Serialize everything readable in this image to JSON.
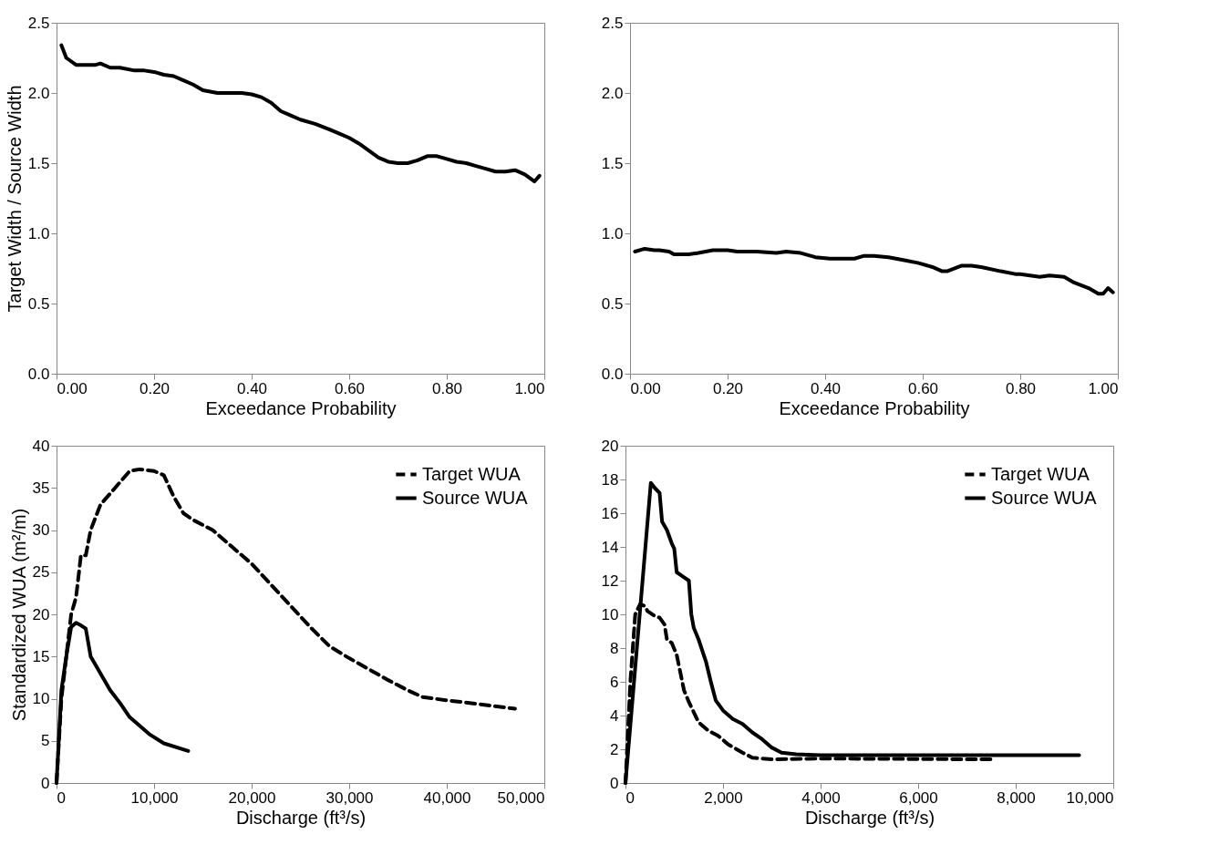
{
  "chart_data": [
    {
      "type": "line",
      "xlabel": "Exceedance Probability",
      "ylabel": "Target Width / Source Width",
      "line_style": "solid",
      "grid": false,
      "legend": false,
      "xlim": [
        0,
        1
      ],
      "xticks": [
        {
          "value": 0,
          "label": "0.00"
        },
        {
          "value": 0.2,
          "label": "0.20"
        },
        {
          "value": 0.4,
          "label": "0.40"
        },
        {
          "value": 0.6,
          "label": "0.60"
        },
        {
          "value": 0.8,
          "label": "0.80"
        },
        {
          "value": 1,
          "label": "1.00"
        }
      ],
      "ylim": [
        0,
        2.5
      ],
      "yticks": [
        {
          "value": 0,
          "label": "0.0"
        },
        {
          "value": 0.5,
          "label": "0.5"
        },
        {
          "value": 1,
          "label": "1.0"
        },
        {
          "value": 1.5,
          "label": "1.5"
        },
        {
          "value": 2,
          "label": "2.0"
        },
        {
          "value": 2.5,
          "label": "2.5"
        }
      ],
      "series": [
        {
          "color": "#000000",
          "x": [
            0.01,
            0.02,
            0.04,
            0.06,
            0.08,
            0.09,
            0.11,
            0.13,
            0.16,
            0.18,
            0.2,
            0.22,
            0.24,
            0.26,
            0.28,
            0.3,
            0.33,
            0.36,
            0.38,
            0.4,
            0.42,
            0.44,
            0.46,
            0.48,
            0.5,
            0.53,
            0.56,
            0.58,
            0.6,
            0.62,
            0.64,
            0.66,
            0.68,
            0.7,
            0.72,
            0.74,
            0.76,
            0.78,
            0.8,
            0.82,
            0.84,
            0.86,
            0.88,
            0.9,
            0.92,
            0.94,
            0.96,
            0.98,
            0.99
          ],
          "values": [
            2.34,
            2.25,
            2.2,
            2.2,
            2.2,
            2.21,
            2.18,
            2.18,
            2.16,
            2.16,
            2.15,
            2.13,
            2.12,
            2.09,
            2.06,
            2.02,
            2.0,
            2.0,
            2.0,
            1.99,
            1.97,
            1.93,
            1.87,
            1.84,
            1.81,
            1.78,
            1.74,
            1.71,
            1.68,
            1.64,
            1.59,
            1.54,
            1.51,
            1.5,
            1.5,
            1.52,
            1.55,
            1.55,
            1.53,
            1.51,
            1.5,
            1.48,
            1.46,
            1.44,
            1.44,
            1.45,
            1.42,
            1.37,
            1.41
          ]
        }
      ]
    },
    {
      "type": "line",
      "xlabel": "Exceedance Probability",
      "line_style": "solid",
      "grid": false,
      "legend": false,
      "xlim": [
        0,
        1
      ],
      "xticks": [
        {
          "value": 0,
          "label": "0.00"
        },
        {
          "value": 0.2,
          "label": "0.20"
        },
        {
          "value": 0.4,
          "label": "0.40"
        },
        {
          "value": 0.6,
          "label": "0.60"
        },
        {
          "value": 0.8,
          "label": "0.80"
        },
        {
          "value": 1,
          "label": "1.00"
        }
      ],
      "ylim": [
        0,
        2.5
      ],
      "yticks": [
        {
          "value": 0,
          "label": "0.0"
        },
        {
          "value": 0.5,
          "label": "0.5"
        },
        {
          "value": 1,
          "label": "1.0"
        },
        {
          "value": 1.5,
          "label": "1.5"
        },
        {
          "value": 2,
          "label": "2.0"
        },
        {
          "value": 2.5,
          "label": "2.5"
        }
      ],
      "series": [
        {
          "color": "#000000",
          "x": [
            0.01,
            0.03,
            0.05,
            0.06,
            0.08,
            0.09,
            0.12,
            0.14,
            0.17,
            0.2,
            0.22,
            0.26,
            0.3,
            0.32,
            0.35,
            0.38,
            0.41,
            0.44,
            0.46,
            0.48,
            0.5,
            0.53,
            0.56,
            0.59,
            0.62,
            0.64,
            0.65,
            0.68,
            0.7,
            0.72,
            0.76,
            0.79,
            0.8,
            0.84,
            0.86,
            0.89,
            0.91,
            0.94,
            0.96,
            0.97,
            0.98,
            0.99
          ],
          "values": [
            0.87,
            0.89,
            0.88,
            0.88,
            0.87,
            0.85,
            0.85,
            0.86,
            0.88,
            0.88,
            0.87,
            0.87,
            0.86,
            0.87,
            0.86,
            0.83,
            0.82,
            0.82,
            0.82,
            0.84,
            0.84,
            0.83,
            0.81,
            0.79,
            0.76,
            0.73,
            0.73,
            0.77,
            0.77,
            0.76,
            0.73,
            0.71,
            0.71,
            0.69,
            0.7,
            0.69,
            0.65,
            0.61,
            0.57,
            0.57,
            0.61,
            0.58
          ]
        }
      ]
    },
    {
      "type": "line",
      "xlabel": "Discharge (ft³/s)",
      "ylabel": "Standardized WUA (m²/m)",
      "grid": false,
      "legend": "top right",
      "xlim": [
        0,
        50000
      ],
      "xticks": [
        0,
        {
          "value": 10000,
          "label": "10,000"
        },
        {
          "value": 20000,
          "label": "20,000"
        },
        {
          "value": 30000,
          "label": "30,000"
        },
        {
          "value": 40000,
          "label": "40,000"
        },
        {
          "value": 50000,
          "label": "50,000"
        }
      ],
      "ylim": [
        0,
        40
      ],
      "yticks": [
        0,
        5,
        10,
        15,
        20,
        25,
        30,
        35,
        40
      ],
      "series": [
        {
          "name": "Target WUA",
          "color": "#000000",
          "line_style": "dashed",
          "x": [
            0,
            500,
            1000,
            1500,
            2000,
            2500,
            3000,
            3500,
            4500,
            6000,
            7500,
            8500,
            10000,
            11000,
            12000,
            13000,
            14000,
            16000,
            18000,
            20000,
            22000,
            24000,
            26000,
            28000,
            30000,
            32000,
            34000,
            36000,
            37500,
            40000,
            43000,
            47000
          ],
          "values": [
            0,
            10,
            15,
            20,
            22,
            27,
            27,
            30,
            33,
            35,
            37,
            37.2,
            37,
            36.5,
            34,
            32,
            31.2,
            30,
            28,
            26,
            23.5,
            21,
            18.5,
            16.2,
            14.8,
            13.5,
            12.2,
            11,
            10.2,
            9.8,
            9.4,
            8.8
          ]
        },
        {
          "name": "Source WUA",
          "color": "#000000",
          "line_style": "solid",
          "x": [
            0,
            500,
            1000,
            1500,
            2000,
            2500,
            3000,
            3500,
            4500,
            5500,
            6500,
            7500,
            8500,
            9500,
            11000,
            13500
          ],
          "values": [
            0,
            11,
            15,
            18.5,
            19,
            18.7,
            18.3,
            15,
            13,
            11,
            9.5,
            7.8,
            6.8,
            5.8,
            4.7,
            3.8
          ]
        }
      ]
    },
    {
      "type": "line",
      "xlabel": "Discharge (ft³/s)",
      "grid": false,
      "legend": "top right",
      "xlim": [
        0,
        10000
      ],
      "xticks": [
        0,
        {
          "value": 2000,
          "label": "2,000"
        },
        {
          "value": 4000,
          "label": "4,000"
        },
        {
          "value": 6000,
          "label": "6,000"
        },
        {
          "value": 8000,
          "label": "8,000"
        },
        {
          "value": 10000,
          "label": "10,000"
        }
      ],
      "ylim": [
        0,
        20
      ],
      "yticks": [
        0,
        2,
        4,
        6,
        8,
        10,
        12,
        14,
        16,
        18,
        20
      ],
      "series": [
        {
          "name": "Target WUA",
          "color": "#000000",
          "line_style": "dashed",
          "x": [
            0,
            100,
            150,
            200,
            300,
            400,
            450,
            600,
            700,
            800,
            850,
            950,
            1050,
            1200,
            1300,
            1500,
            1700,
            1900,
            2100,
            2400,
            2600,
            3000,
            4000,
            7500
          ],
          "values": [
            0,
            6,
            8,
            10,
            10.6,
            10.5,
            10.2,
            9.9,
            9.8,
            9.4,
            8.5,
            8.3,
            7.6,
            5.5,
            4.8,
            3.6,
            3.1,
            2.8,
            2.3,
            1.8,
            1.5,
            1.4,
            1.45,
            1.4
          ]
        },
        {
          "name": "Source WUA",
          "color": "#000000",
          "line_style": "solid",
          "x": [
            0,
            520,
            600,
            700,
            750,
            850,
            950,
            1000,
            1050,
            1200,
            1300,
            1350,
            1400,
            1500,
            1650,
            1750,
            1850,
            2000,
            2200,
            2400,
            2600,
            2800,
            3000,
            3200,
            3500,
            4000,
            6000,
            9300
          ],
          "values": [
            0,
            17.8,
            17.5,
            17.2,
            15.5,
            15,
            14.2,
            13.9,
            12.5,
            12.2,
            12,
            10,
            9.2,
            8.5,
            7.2,
            6,
            4.9,
            4.3,
            3.8,
            3.5,
            3,
            2.6,
            2.1,
            1.8,
            1.7,
            1.65,
            1.65,
            1.65
          ]
        }
      ]
    }
  ]
}
